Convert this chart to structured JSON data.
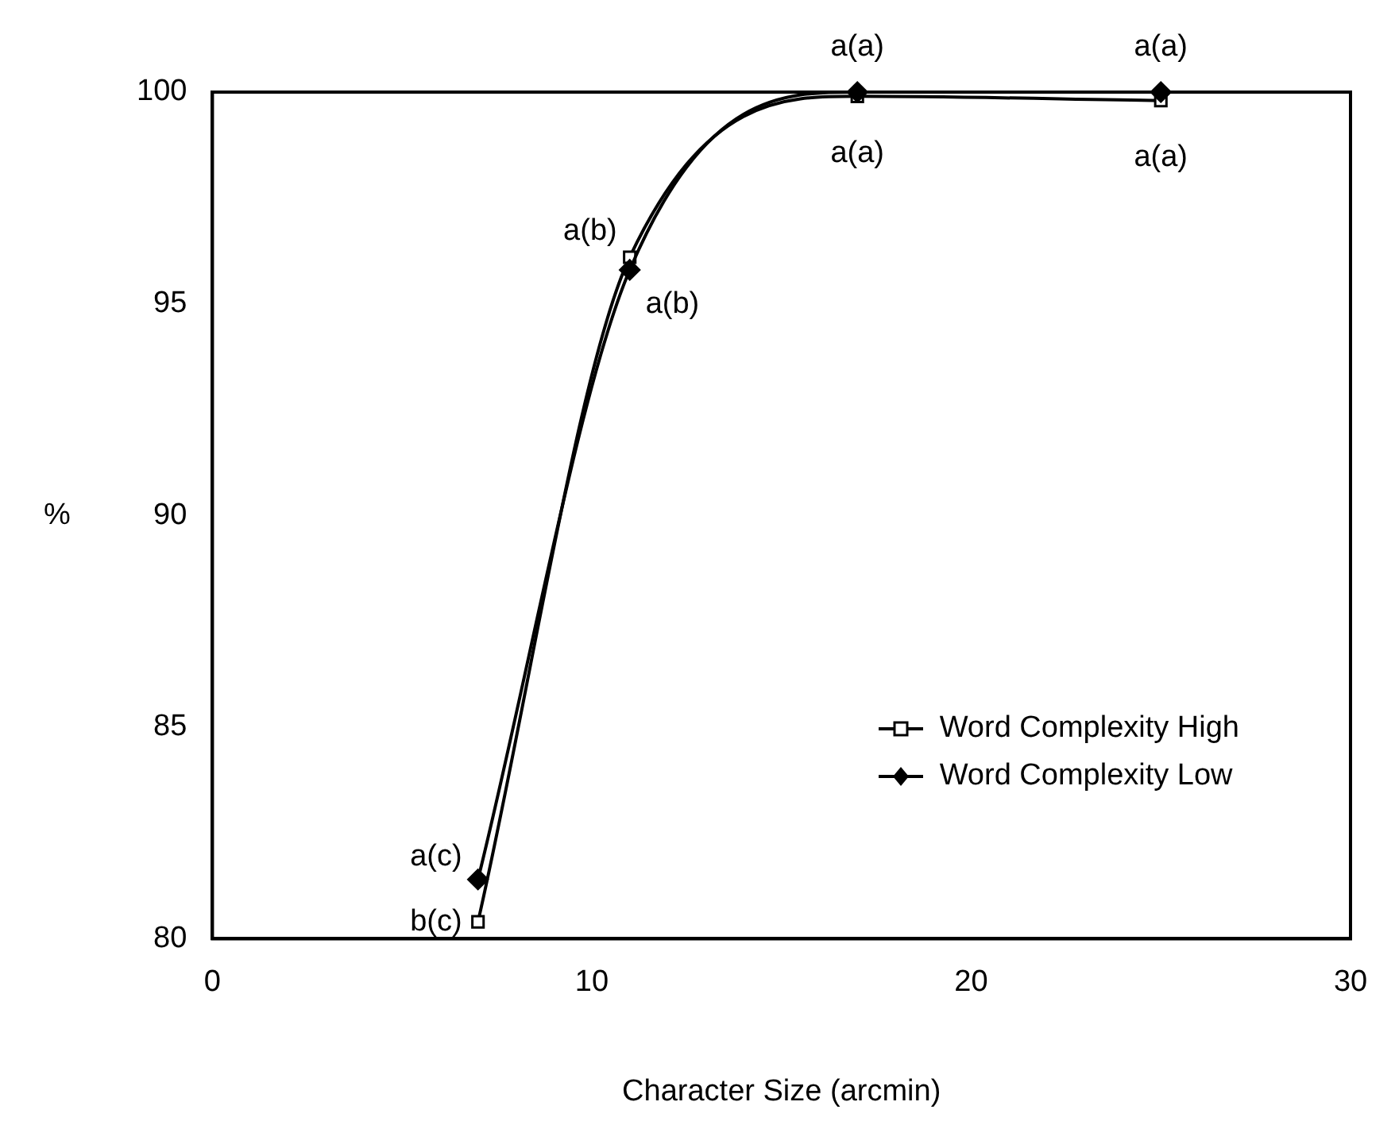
{
  "chart_data": {
    "type": "line",
    "xlabel": "Character Size (arcmin)",
    "ylabel": "%",
    "x": [
      7,
      11,
      17,
      25
    ],
    "series": [
      {
        "name": "Word Complexity High",
        "color": "#000000",
        "marker": "square",
        "values": [
          80.4,
          96.1,
          99.9,
          99.8
        ]
      },
      {
        "name": "Word Complexity Low",
        "color": "#000000",
        "marker": "diamond",
        "values": [
          81.4,
          95.8,
          100,
          100
        ]
      }
    ],
    "xlim": [
      0,
      30
    ],
    "xticks": [
      0,
      10,
      20,
      30
    ],
    "ylim": [
      80,
      100
    ],
    "yticks": [
      80,
      85,
      90,
      95,
      100
    ],
    "grid": false,
    "legend": "right",
    "annotations": [
      {
        "text": "a(c)",
        "x": 7,
        "y": 81.4
      },
      {
        "text": "b(c)",
        "x": 7,
        "y": 80.4
      },
      {
        "text": "a(b)",
        "x": 11,
        "y": 96.1
      },
      {
        "text": "a(b)",
        "x": 11,
        "y": 95.8
      },
      {
        "text": "a(a)",
        "x": 17,
        "y": 100
      },
      {
        "text": "a(a)",
        "x": 17,
        "y": 99.9
      },
      {
        "text": "a(a)",
        "x": 25,
        "y": 100
      },
      {
        "text": "a(a)",
        "x": 25,
        "y": 99.8
      }
    ]
  }
}
